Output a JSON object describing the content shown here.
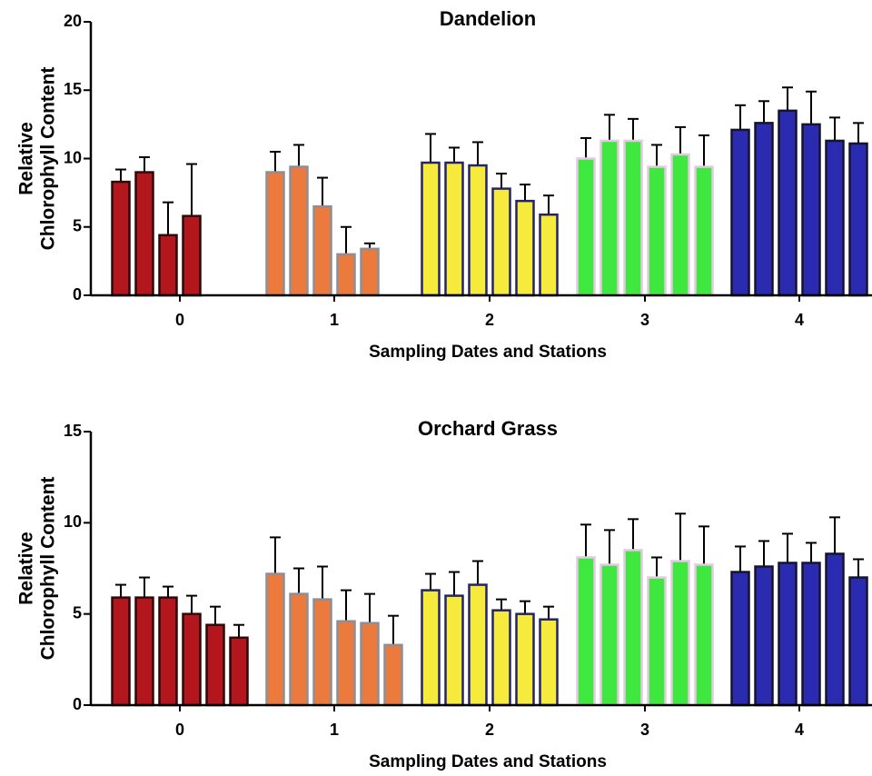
{
  "chart_data": [
    {
      "type": "grouped_bar",
      "title": "Dandelion",
      "x_label": "Sampling Dates and Stations",
      "y_label": [
        "Relative",
        "Chlorophyll Content"
      ],
      "ylim": [
        0,
        20
      ],
      "yticks": [
        0,
        5,
        10,
        15,
        20
      ],
      "groups": [
        {
          "category": "0",
          "color": "#b3161c",
          "edge_color": "#2a0a0a",
          "values": [
            8.3,
            9.0,
            4.4,
            5.8
          ],
          "errors": [
            0.9,
            1.1,
            2.4,
            3.8
          ]
        },
        {
          "category": "1",
          "color": "#ec7a3c",
          "edge_color": "#8a8f9a",
          "values": [
            9.0,
            9.4,
            6.5,
            3.0,
            3.4
          ],
          "errors": [
            1.5,
            1.6,
            2.1,
            2.0,
            0.4
          ]
        },
        {
          "category": "2",
          "color": "#f6ea3c",
          "edge_color": "#23236a",
          "values": [
            9.7,
            9.7,
            9.5,
            7.8,
            6.9,
            5.9
          ],
          "errors": [
            2.1,
            1.1,
            1.7,
            1.1,
            1.2,
            1.4
          ]
        },
        {
          "category": "3",
          "color": "#3ee83e",
          "edge_color": "#e6c8e6",
          "values": [
            10.0,
            11.3,
            11.3,
            9.4,
            10.3,
            9.4
          ],
          "errors": [
            1.5,
            1.9,
            1.6,
            1.6,
            2.0,
            2.3
          ]
        },
        {
          "category": "4",
          "color": "#2b2bb2",
          "edge_color": "#15152a",
          "values": [
            12.1,
            12.6,
            13.5,
            12.5,
            11.3,
            11.1
          ],
          "errors": [
            1.8,
            1.6,
            1.7,
            2.4,
            1.7,
            1.5
          ]
        }
      ]
    },
    {
      "type": "grouped_bar",
      "title": "Orchard Grass",
      "x_label": "Sampling Dates and Stations",
      "y_label": [
        "Relative",
        "Chlorophyll Content"
      ],
      "ylim": [
        0,
        15
      ],
      "yticks": [
        0,
        5,
        10,
        15
      ],
      "groups": [
        {
          "category": "0",
          "color": "#b3161c",
          "edge_color": "#2a0a0a",
          "values": [
            5.9,
            5.9,
            5.9,
            5.0,
            4.4,
            3.7
          ],
          "errors": [
            0.7,
            1.1,
            0.6,
            1.0,
            1.0,
            0.7
          ]
        },
        {
          "category": "1",
          "color": "#ec7a3c",
          "edge_color": "#8a8f9a",
          "values": [
            7.2,
            6.1,
            5.8,
            4.6,
            4.5,
            3.3
          ],
          "errors": [
            2.0,
            1.4,
            1.8,
            1.7,
            1.6,
            1.6
          ]
        },
        {
          "category": "2",
          "color": "#f6ea3c",
          "edge_color": "#23236a",
          "values": [
            6.3,
            6.0,
            6.6,
            5.2,
            5.0,
            4.7
          ],
          "errors": [
            0.9,
            1.3,
            1.3,
            0.6,
            0.7,
            0.7
          ]
        },
        {
          "category": "3",
          "color": "#3ee83e",
          "edge_color": "#e6c8e6",
          "values": [
            8.1,
            7.7,
            8.5,
            7.0,
            7.9,
            7.7
          ],
          "errors": [
            1.8,
            1.9,
            1.7,
            1.1,
            2.6,
            2.1
          ]
        },
        {
          "category": "4",
          "color": "#2b2bb2",
          "edge_color": "#15152a",
          "values": [
            7.3,
            7.6,
            7.8,
            7.8,
            8.3,
            7.0
          ],
          "errors": [
            1.4,
            1.4,
            1.6,
            1.1,
            2.0,
            1.0
          ]
        }
      ]
    }
  ]
}
